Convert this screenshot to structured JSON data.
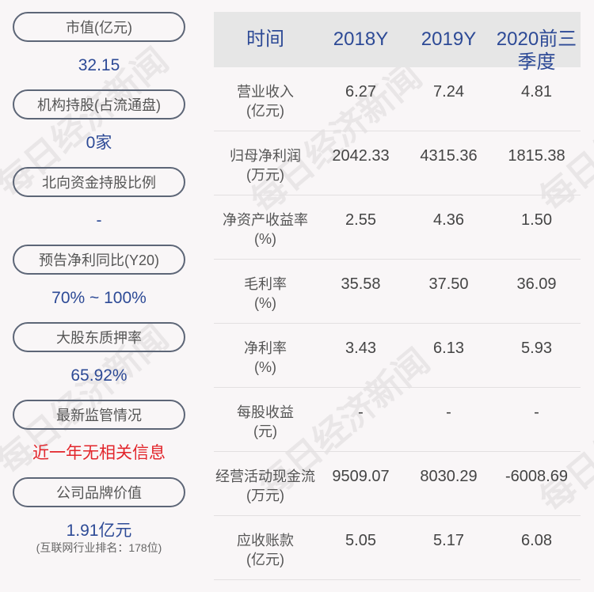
{
  "watermark": "每日经济新闻",
  "metrics": [
    {
      "label": "市值(亿元)",
      "value": "32.15"
    },
    {
      "label": "机构持股(占流通盘)",
      "value": "0家"
    },
    {
      "label": "北向资金持股比例",
      "value": "-"
    },
    {
      "label": "预告净利同比(Y20)",
      "value": "70% ~ 100%"
    },
    {
      "label": "大股东质押率",
      "value": "65.92%"
    },
    {
      "label": "最新监管情况",
      "value": "近一年无相关信息",
      "value_color": "#e2252b"
    },
    {
      "label": "公司品牌价值",
      "value": "1.91亿元",
      "note": "(互联网行业排名：178位)"
    }
  ],
  "table": {
    "headers": [
      "时间",
      "2018Y",
      "2019Y",
      "2020前三季度"
    ],
    "rows": [
      {
        "label": "营业收入",
        "unit": "(亿元)",
        "values": [
          "6.27",
          "7.24",
          "4.81"
        ]
      },
      {
        "label": "归母净利润",
        "unit": "(万元)",
        "values": [
          "2042.33",
          "4315.36",
          "1815.38"
        ]
      },
      {
        "label": "净资产收益率",
        "unit": "(%)",
        "values": [
          "2.55",
          "4.36",
          "1.50"
        ]
      },
      {
        "label": "毛利率",
        "unit": "(%)",
        "values": [
          "35.58",
          "37.50",
          "36.09"
        ]
      },
      {
        "label": "净利率",
        "unit": "(%)",
        "values": [
          "3.43",
          "6.13",
          "5.93"
        ]
      },
      {
        "label": "每股收益",
        "unit": "(元)",
        "values": [
          "-",
          "-",
          "-"
        ]
      },
      {
        "label": "经营活动现金流",
        "unit": "(万元)",
        "values": [
          "9509.07",
          "8030.29",
          "-6008.69"
        ]
      },
      {
        "label": "应收账款",
        "unit": "(亿元)",
        "values": [
          "5.05",
          "5.17",
          "6.08"
        ]
      }
    ]
  },
  "colors": {
    "accent": "#2d4a96",
    "alert": "#e2252b",
    "pill_border": "#5d6677",
    "header_bg": "#e6e6e6"
  }
}
